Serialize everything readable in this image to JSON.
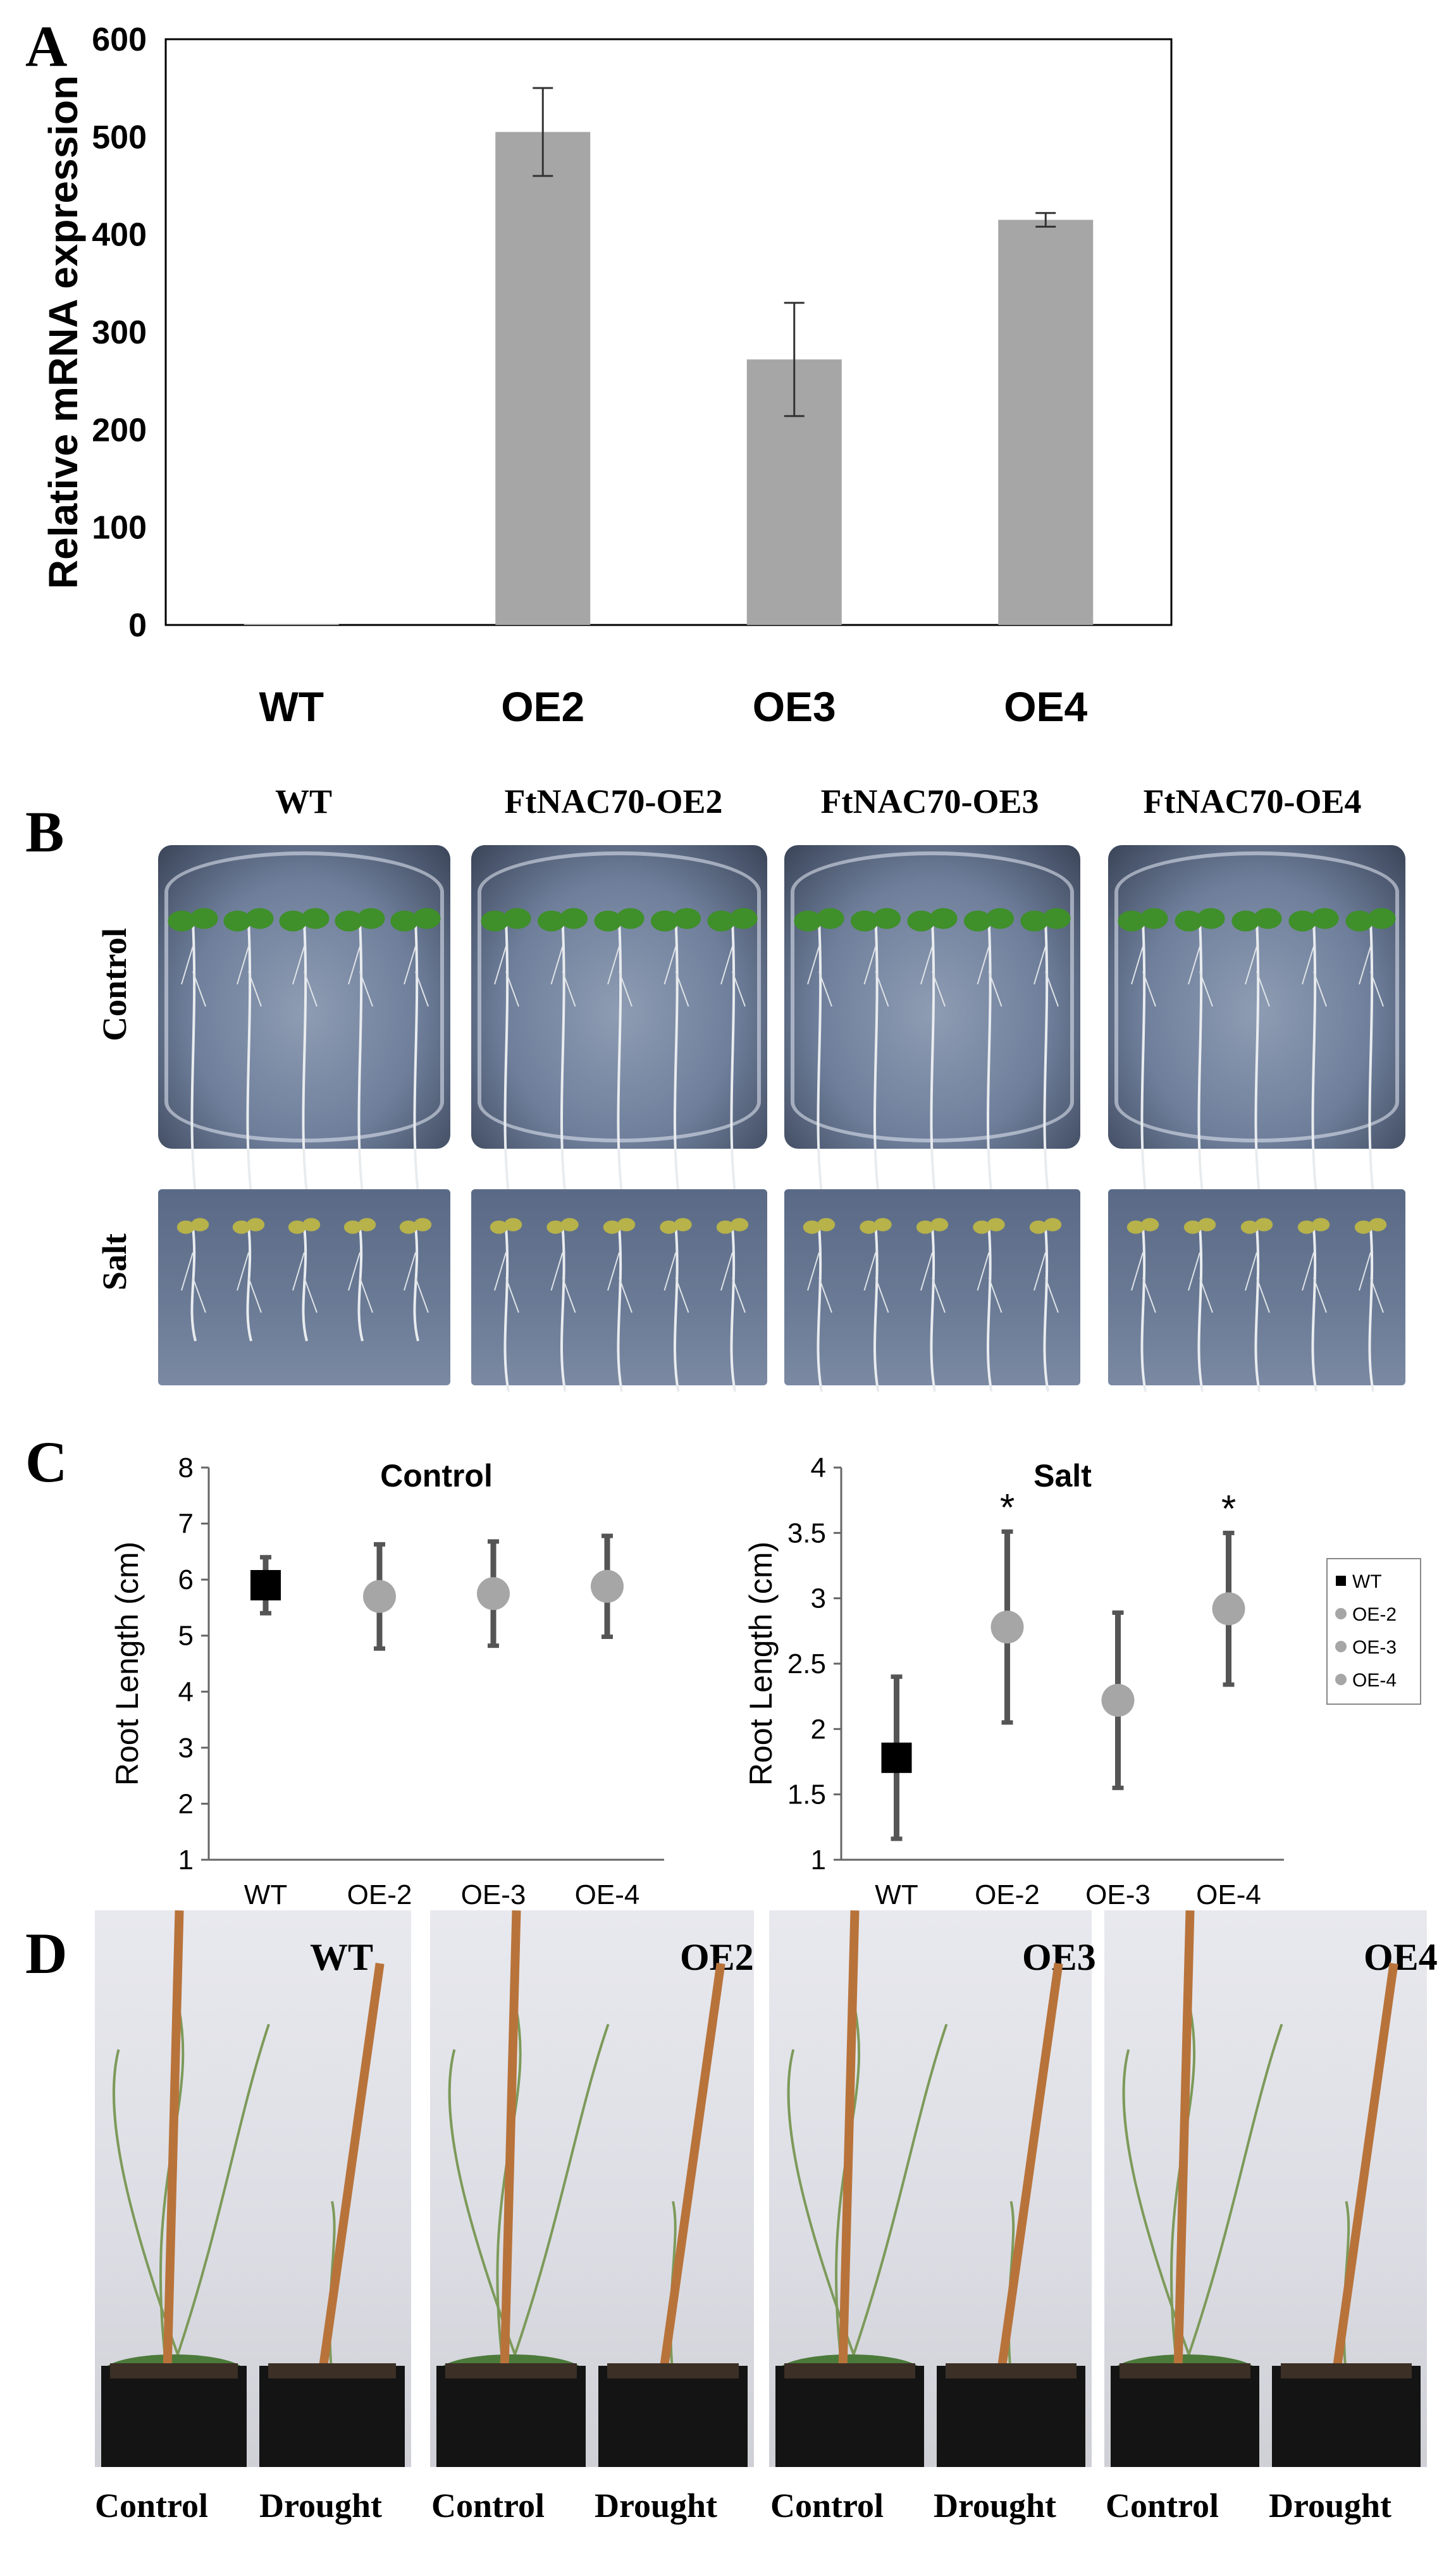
{
  "panels": {
    "a_letter": "A",
    "b_letter": "B",
    "c_letter": "C",
    "d_letter": "D"
  },
  "panel_b": {
    "columns": [
      "WT",
      "FtNAC70-OE2",
      "FtNAC70-OE3",
      "FtNAC70-OE4"
    ],
    "rows": [
      "Control",
      "Salt"
    ]
  },
  "panel_d": {
    "labels": [
      "WT",
      "OE2",
      "OE3",
      "OE4"
    ],
    "bottom_labels": [
      "Control",
      "Drought",
      "Control",
      "Drought",
      "Control",
      "Drought",
      "Control",
      "Drought"
    ]
  },
  "chart_data": [
    {
      "type": "bar",
      "title": "",
      "ylabel": "Relative mRNA expression",
      "xlabel": "",
      "categories": [
        "WT",
        "OE2",
        "OE3",
        "OE4"
      ],
      "values": [
        1,
        505,
        272,
        415
      ],
      "errors": [
        0,
        45,
        58,
        7
      ],
      "ylim": [
        0,
        600
      ],
      "yticks": [
        0,
        100,
        200,
        300,
        400,
        500,
        600
      ],
      "bar_color": "#a6a6a6"
    },
    {
      "type": "scatter",
      "title": "Control",
      "ylabel": "Root Length (cm)",
      "categories": [
        "WT",
        "OE-2",
        "OE-3",
        "OE-4"
      ],
      "values": [
        5.9,
        5.7,
        5.75,
        5.88
      ],
      "errors": [
        0.5,
        0.93,
        0.93,
        0.9
      ],
      "ylim": [
        1,
        8
      ],
      "yticks": [
        1,
        2,
        3,
        4,
        5,
        6,
        7,
        8
      ],
      "markers": [
        "square",
        "circle",
        "circle",
        "circle"
      ],
      "marker_colors": [
        "#000000",
        "#a6a6a6",
        "#a6a6a6",
        "#a6a6a6"
      ]
    },
    {
      "type": "scatter",
      "title": "Salt",
      "ylabel": "Root Length (cm)",
      "categories": [
        "WT",
        "OE-2",
        "OE-3",
        "OE-4"
      ],
      "values": [
        1.78,
        2.78,
        2.22,
        2.92
      ],
      "errors": [
        0.62,
        0.73,
        0.67,
        0.58
      ],
      "significance": [
        "",
        "*",
        "",
        "*"
      ],
      "ylim": [
        1,
        4
      ],
      "yticks": [
        1,
        1.5,
        2,
        2.5,
        3,
        3.5,
        4
      ],
      "ytick_labels": [
        "1",
        "1.5",
        "2",
        "2.5",
        "3",
        "3.5",
        "4"
      ],
      "markers": [
        "square",
        "circle",
        "circle",
        "circle"
      ],
      "marker_colors": [
        "#000000",
        "#a6a6a6",
        "#a6a6a6",
        "#a6a6a6"
      ],
      "legend": {
        "placement": "right",
        "entries": [
          "WT",
          "OE-2",
          "OE-3",
          "OE-4"
        ]
      }
    }
  ]
}
